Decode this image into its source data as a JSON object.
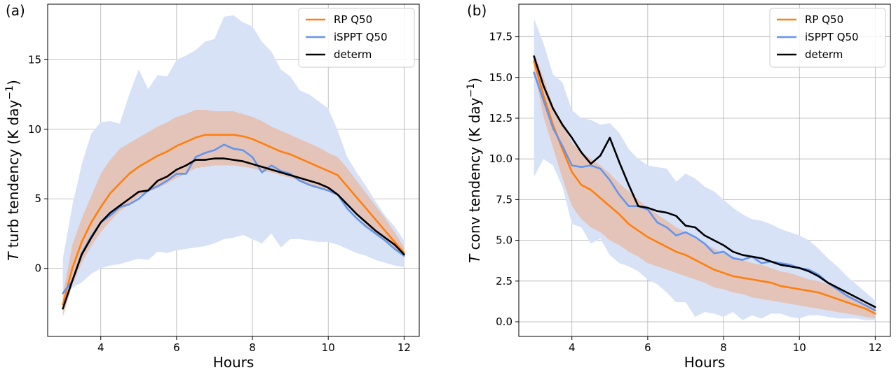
{
  "colors": {
    "rp": "#ff7f0e",
    "isppt": "#6495ed",
    "determ": "#000000",
    "rp_band": "#e8b9a3",
    "isppt_band": "#d7e2f7"
  },
  "chart_data": [
    {
      "type": "line",
      "panel_label": "(a)",
      "xlabel": "Hours",
      "ylabel": "T turb tendency (K day^-1)",
      "ylabel_italic": "T",
      "ylabel_text": " turb tendency (K day",
      "ylabel_sup": "−1",
      "ylabel_close": ")",
      "xlim": [
        2.6,
        12.4
      ],
      "ylim": [
        -4.9,
        19.0
      ],
      "xticks": [
        4,
        6,
        8,
        10,
        12
      ],
      "xtick_labels": [
        "4",
        "6",
        "8",
        "10",
        "12"
      ],
      "yticks": [
        0,
        5,
        10,
        15
      ],
      "ytick_labels": [
        "0",
        "5",
        "10",
        "15"
      ],
      "grid": true,
      "legend_position": "top-right",
      "x": [
        3.0,
        3.25,
        3.5,
        3.75,
        4.0,
        4.25,
        4.5,
        4.75,
        5.0,
        5.25,
        5.5,
        5.75,
        6.0,
        6.25,
        6.5,
        6.75,
        7.0,
        7.25,
        7.5,
        7.75,
        8.0,
        8.25,
        8.5,
        8.75,
        9.0,
        9.25,
        9.5,
        9.75,
        10.0,
        10.25,
        10.5,
        10.75,
        11.0,
        11.25,
        11.5,
        11.75,
        12.0
      ],
      "series": [
        {
          "name": "RP Q50",
          "key": "rp",
          "values": [
            -2.6,
            0.0,
            1.9,
            3.3,
            4.4,
            5.4,
            6.1,
            6.8,
            7.3,
            7.7,
            8.1,
            8.4,
            8.8,
            9.1,
            9.4,
            9.6,
            9.6,
            9.6,
            9.6,
            9.5,
            9.3,
            9.0,
            8.7,
            8.4,
            8.2,
            7.9,
            7.6,
            7.3,
            7.0,
            6.7,
            5.9,
            5.1,
            4.3,
            3.5,
            2.7,
            1.9,
            1.1
          ]
        },
        {
          "name": "iSPPT Q50",
          "key": "isppt",
          "values": [
            -1.8,
            -0.9,
            1.1,
            2.3,
            3.3,
            3.8,
            4.4,
            4.6,
            5.0,
            5.6,
            5.9,
            6.3,
            6.8,
            6.8,
            8.0,
            8.3,
            8.5,
            8.9,
            8.6,
            8.5,
            8.0,
            6.9,
            7.4,
            7.0,
            6.8,
            6.3,
            6.0,
            5.8,
            5.6,
            5.3,
            4.3,
            3.6,
            3.0,
            2.5,
            2.0,
            1.4,
            0.9
          ]
        },
        {
          "name": "determ",
          "key": "determ",
          "values": [
            -2.9,
            -0.9,
            1.0,
            2.2,
            3.3,
            4.0,
            4.5,
            5.0,
            5.5,
            5.6,
            6.3,
            6.6,
            7.1,
            7.4,
            7.8,
            7.8,
            7.9,
            7.9,
            7.8,
            7.7,
            7.5,
            7.3,
            7.1,
            6.9,
            6.7,
            6.5,
            6.3,
            6.1,
            5.8,
            5.3,
            4.6,
            3.9,
            3.3,
            2.7,
            2.2,
            1.7,
            1.0
          ]
        }
      ],
      "bands": [
        {
          "key": "isppt_band",
          "lower": [
            -1.8,
            -1.4,
            -1.0,
            -0.4,
            0.0,
            0.2,
            0.3,
            0.5,
            0.7,
            0.6,
            1.2,
            1.1,
            1.3,
            1.4,
            1.5,
            1.6,
            1.8,
            2.1,
            2.2,
            2.4,
            2.1,
            1.8,
            2.5,
            1.5,
            2.1,
            2.1,
            2.0,
            1.9,
            1.9,
            1.7,
            1.4,
            1.1,
            0.9,
            0.6,
            0.4,
            0.2,
            0.1
          ],
          "upper": [
            0.7,
            4.5,
            7.5,
            9.7,
            10.5,
            10.6,
            10.4,
            12.5,
            14.3,
            12.9,
            13.9,
            13.8,
            15.0,
            15.3,
            15.7,
            16.3,
            16.5,
            18.1,
            18.2,
            17.7,
            17.4,
            16.3,
            15.6,
            14.3,
            13.8,
            12.8,
            12.5,
            12.0,
            11.5,
            9.9,
            8.0,
            6.9,
            5.9,
            4.8,
            3.8,
            3.0,
            2.0
          ]
        },
        {
          "key": "rp_band",
          "lower": [
            -3.5,
            -1.2,
            0.4,
            1.6,
            2.6,
            3.4,
            4.1,
            4.6,
            5.2,
            5.5,
            5.8,
            6.1,
            6.5,
            6.8,
            7.2,
            7.3,
            7.4,
            7.4,
            7.4,
            7.3,
            7.2,
            7.0,
            6.9,
            6.7,
            6.5,
            6.3,
            6.0,
            5.8,
            5.5,
            5.2,
            4.5,
            3.8,
            3.1,
            2.5,
            1.9,
            1.4,
            0.8
          ],
          "upper": [
            -1.9,
            1.7,
            3.6,
            5.2,
            6.8,
            7.8,
            8.6,
            9.0,
            9.4,
            9.8,
            10.2,
            10.5,
            10.9,
            11.1,
            11.4,
            11.4,
            11.3,
            11.3,
            11.3,
            11.1,
            10.9,
            10.6,
            10.2,
            9.9,
            9.6,
            9.3,
            9.0,
            8.7,
            8.3,
            8.0,
            7.2,
            6.3,
            5.4,
            4.5,
            3.6,
            2.6,
            1.5
          ]
        }
      ]
    },
    {
      "type": "line",
      "panel_label": "(b)",
      "xlabel": "Hours",
      "ylabel": "T conv tendency (K day^-1)",
      "ylabel_italic": "T",
      "ylabel_text": " conv tendency (K day",
      "ylabel_sup": "−1",
      "ylabel_close": ")",
      "xlim": [
        2.6,
        12.4
      ],
      "ylim": [
        -0.9,
        19.5
      ],
      "xticks": [
        4,
        6,
        8,
        10,
        12
      ],
      "xtick_labels": [
        "4",
        "6",
        "8",
        "10",
        "12"
      ],
      "yticks": [
        0.0,
        2.5,
        5.0,
        7.5,
        10.0,
        12.5,
        15.0,
        17.5
      ],
      "ytick_labels": [
        "0.0",
        "2.5",
        "5.0",
        "7.5",
        "10.0",
        "12.5",
        "15.0",
        "17.5"
      ],
      "grid": true,
      "legend_position": "top-right",
      "x": [
        3.0,
        3.25,
        3.5,
        3.75,
        4.0,
        4.25,
        4.5,
        4.75,
        5.0,
        5.25,
        5.5,
        5.75,
        6.0,
        6.25,
        6.5,
        6.75,
        7.0,
        7.25,
        7.5,
        7.75,
        8.0,
        8.25,
        8.5,
        8.75,
        9.0,
        9.25,
        9.5,
        9.75,
        10.0,
        10.25,
        10.5,
        10.75,
        11.0,
        11.25,
        11.5,
        11.75,
        12.0
      ],
      "series": [
        {
          "name": "RP Q50",
          "key": "rp",
          "values": [
            16.0,
            13.9,
            12.1,
            10.6,
            9.2,
            8.4,
            8.1,
            7.6,
            7.1,
            6.6,
            6.0,
            5.6,
            5.2,
            4.9,
            4.6,
            4.3,
            4.1,
            3.8,
            3.5,
            3.2,
            3.0,
            2.8,
            2.7,
            2.6,
            2.5,
            2.4,
            2.2,
            2.1,
            2.0,
            1.9,
            1.8,
            1.6,
            1.4,
            1.2,
            1.0,
            0.8,
            0.5
          ]
        },
        {
          "name": "iSPPT Q50",
          "key": "isppt",
          "values": [
            15.3,
            13.6,
            11.9,
            10.8,
            9.6,
            9.5,
            9.6,
            9.4,
            8.7,
            7.8,
            7.1,
            7.1,
            6.9,
            6.1,
            5.8,
            5.3,
            5.5,
            5.2,
            4.8,
            4.2,
            4.3,
            3.9,
            3.8,
            4.0,
            3.6,
            3.7,
            3.6,
            3.5,
            3.3,
            3.2,
            2.9,
            2.4,
            2.0,
            1.6,
            1.3,
            1.0,
            0.7
          ]
        },
        {
          "name": "determ",
          "key": "determ",
          "values": [
            16.3,
            14.5,
            13.1,
            12.1,
            11.3,
            10.4,
            9.7,
            10.2,
            11.3,
            9.8,
            8.4,
            7.1,
            7.0,
            6.8,
            6.7,
            6.5,
            5.9,
            5.8,
            5.3,
            5.0,
            4.7,
            4.3,
            4.1,
            4.0,
            3.9,
            3.7,
            3.5,
            3.4,
            3.3,
            3.1,
            2.8,
            2.4,
            2.1,
            1.8,
            1.5,
            1.2,
            0.9
          ]
        }
      ],
      "bands": [
        {
          "key": "isppt_band",
          "lower": [
            8.9,
            10.0,
            9.6,
            8.3,
            6.0,
            5.8,
            4.8,
            5.1,
            4.1,
            3.6,
            3.4,
            3.1,
            2.6,
            2.3,
            1.8,
            1.2,
            1.2,
            0.3,
            0.6,
            0.5,
            0.3,
            0.6,
            0.1,
            0.4,
            0.2,
            0.5,
            0.5,
            0.3,
            0.2,
            0.4,
            0.4,
            0.3,
            0.2,
            0.2,
            0.2,
            0.1,
            0.1
          ],
          "upper": [
            18.6,
            17.1,
            15.2,
            14.7,
            13.0,
            12.5,
            12.4,
            12.1,
            12.2,
            11.6,
            10.6,
            10.0,
            9.6,
            9.5,
            9.4,
            8.6,
            9.1,
            8.8,
            8.3,
            8.0,
            7.5,
            7.0,
            6.6,
            6.3,
            6.2,
            6.0,
            5.7,
            5.5,
            5.3,
            5.0,
            4.5,
            3.9,
            3.4,
            2.8,
            2.3,
            1.8,
            1.3
          ]
        },
        {
          "key": "rp_band",
          "lower": [
            15.5,
            12.6,
            10.7,
            8.8,
            7.1,
            6.3,
            5.8,
            5.5,
            5.0,
            4.7,
            4.3,
            4.0,
            3.6,
            3.4,
            3.2,
            3.0,
            2.8,
            2.6,
            2.4,
            2.1,
            2.0,
            1.8,
            1.7,
            1.5,
            1.4,
            1.3,
            1.2,
            1.1,
            1.0,
            0.9,
            0.8,
            0.7,
            0.6,
            0.5,
            0.4,
            0.3,
            0.2
          ],
          "upper": [
            16.5,
            15.0,
            13.3,
            12.1,
            11.0,
            10.4,
            10.0,
            9.6,
            9.1,
            8.5,
            8.0,
            7.5,
            7.0,
            6.6,
            6.2,
            5.8,
            5.5,
            5.1,
            4.8,
            4.5,
            4.2,
            4.0,
            3.8,
            3.6,
            3.5,
            3.3,
            3.1,
            3.0,
            2.8,
            2.6,
            2.5,
            2.3,
            2.0,
            1.7,
            1.4,
            1.1,
            0.8
          ]
        }
      ]
    }
  ]
}
